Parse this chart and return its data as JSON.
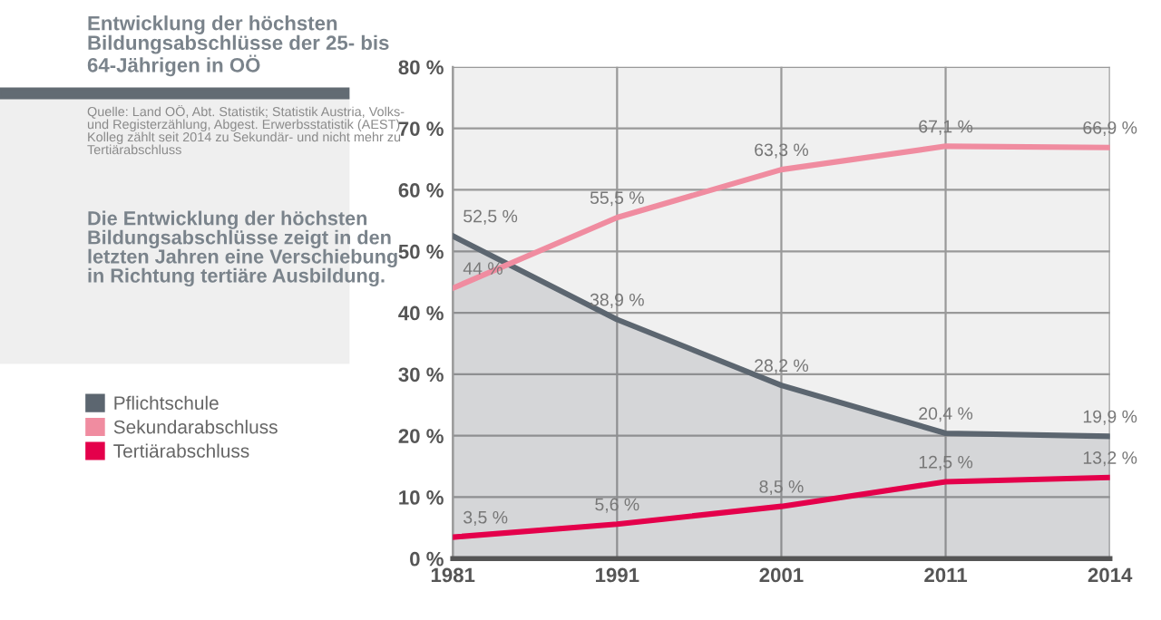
{
  "chart_data": {
    "type": "line",
    "title": "Entwicklung der höchsten Bildungsabschlüsse der 25- bis 64-Jährigen in OÖ",
    "annotations": [
      "Quelle: Land OÖ, Abt. Statistik; Statistik Austria, Volks- und Registerzählung, Abgest. Erwerbsstatistik (AEST) Kolleg zählt seit 2014 zu Sekundär- und nicht mehr zu Tertiärabschluss",
      "Die Entwicklung der höchsten Bildungsabschlüsse zeigt in den letzten Jahren eine Verschiebung in Richtung tertiäre Ausbildung."
    ],
    "categories": [
      "1981",
      "1991",
      "2001",
      "2011",
      "2014"
    ],
    "series": [
      {
        "name": "Pflichtschule",
        "type": "area",
        "color": "#5c6670",
        "values": [
          52.5,
          38.9,
          28.2,
          20.4,
          19.9
        ],
        "value_labels": [
          "52,5 %",
          "38,9 %",
          "28,2 %",
          "20,4 %",
          "19,9 %"
        ]
      },
      {
        "name": "Sekundarabschluss",
        "color": "#f08ca0",
        "values": [
          44,
          55.5,
          63.3,
          67.1,
          66.9
        ],
        "value_labels": [
          "44 %",
          "55,5 %",
          "63,3 %",
          "67,1 %",
          "66,9 %"
        ]
      },
      {
        "name": "Tertiärabschluss",
        "color": "#e4004b",
        "values": [
          3.5,
          5.6,
          8.5,
          12.5,
          13.2
        ],
        "value_labels": [
          "3,5 %",
          "5,6 %",
          "8,5 %",
          "12,5 %",
          "13,2 %"
        ]
      }
    ],
    "ylim": [
      0,
      80
    ],
    "yticks": [
      {
        "value": 0,
        "label": "0 %"
      },
      {
        "value": 10,
        "label": "10 %"
      },
      {
        "value": 20,
        "label": "20 %"
      },
      {
        "value": 30,
        "label": "30 %"
      },
      {
        "value": 40,
        "label": "40 %"
      },
      {
        "value": 50,
        "label": "50 %"
      },
      {
        "value": 60,
        "label": "60 %"
      },
      {
        "value": 70,
        "label": "70 %"
      },
      {
        "value": 80,
        "label": "80 %"
      }
    ],
    "grid": true,
    "legend": "left",
    "marker": "none",
    "line_style": "solid"
  }
}
